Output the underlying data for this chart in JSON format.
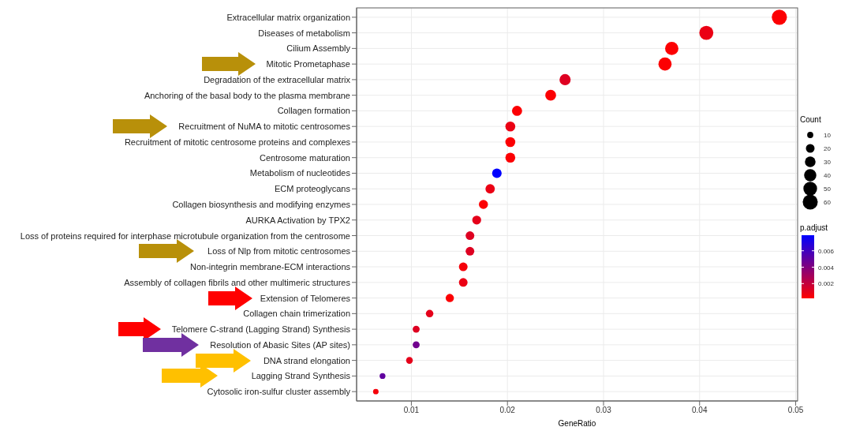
{
  "chart_data": {
    "type": "bubble",
    "xlabel": "GeneRatio",
    "clabel": "p.adjust",
    "legend_title": "Count",
    "categories": [
      "Extracellular matrix organization",
      "Diseases of metabolism",
      "Cilium Assembly",
      "Mitotic Prometaphase",
      "Degradation of the extracellular matrix",
      "Anchoring of the basal body to the plasma membrane",
      "Collagen formation",
      "Recruitment of NuMA to mitotic centrosomes",
      "Recruitment of mitotic centrosome proteins and complexes",
      "Centrosome maturation",
      "Metabolism of nucleotides",
      "ECM proteoglycans",
      "Collagen biosynthesis and modifying enzymes",
      "AURKA Activation by TPX2",
      "Loss of proteins required for interphase microtubule organization from the centrosome",
      "Loss of Nlp from mitotic centrosomes",
      "Non-integrin membrane-ECM interactions",
      "Assembly of collagen fibrils and other multimeric structures",
      "Extension of Telomeres",
      "Collagen chain trimerization",
      "Telomere C-strand (Lagging Strand) Synthesis",
      "Resolution of Abasic Sites (AP sites)",
      "DNA strand elongation",
      "Lagging Strand Synthesis",
      "Cytosolic iron-sulfur cluster assembly"
    ],
    "values": [
      0.0483,
      0.0407,
      0.0371,
      0.0364,
      0.026,
      0.0245,
      0.021,
      0.0203,
      0.0203,
      0.0203,
      0.0189,
      0.0182,
      0.0175,
      0.0168,
      0.0161,
      0.0161,
      0.0154,
      0.0154,
      0.014,
      0.0119,
      0.0105,
      0.0105,
      0.0098,
      0.007,
      0.0063
    ],
    "sizes": [
      61,
      52,
      47,
      46,
      33,
      31,
      27,
      26,
      26,
      26,
      24,
      23,
      22,
      21,
      20,
      20,
      20,
      20,
      18,
      15,
      13,
      13,
      12,
      9,
      8
    ],
    "cvalues": [
      0.0003,
      0.0008,
      0.0003,
      0.0003,
      0.0012,
      0.0003,
      0.0003,
      0.0008,
      0.0003,
      0.0003,
      0.0079,
      0.0008,
      0.0003,
      0.001,
      0.0012,
      0.0012,
      0.0005,
      0.0008,
      0.0003,
      0.001,
      0.0012,
      0.0045,
      0.001,
      0.005,
      0.0005
    ],
    "size_legend": [
      10,
      20,
      30,
      40,
      50,
      60
    ],
    "clim": [
      0.0002,
      0.0079
    ],
    "cticks": [
      0.002,
      0.004,
      0.006
    ],
    "xlim": [
      0.0043,
      0.0502
    ],
    "xticks": [
      0.01,
      0.02,
      0.03,
      0.04,
      0.05
    ],
    "grid": true,
    "orientation": "horizontal"
  }
}
